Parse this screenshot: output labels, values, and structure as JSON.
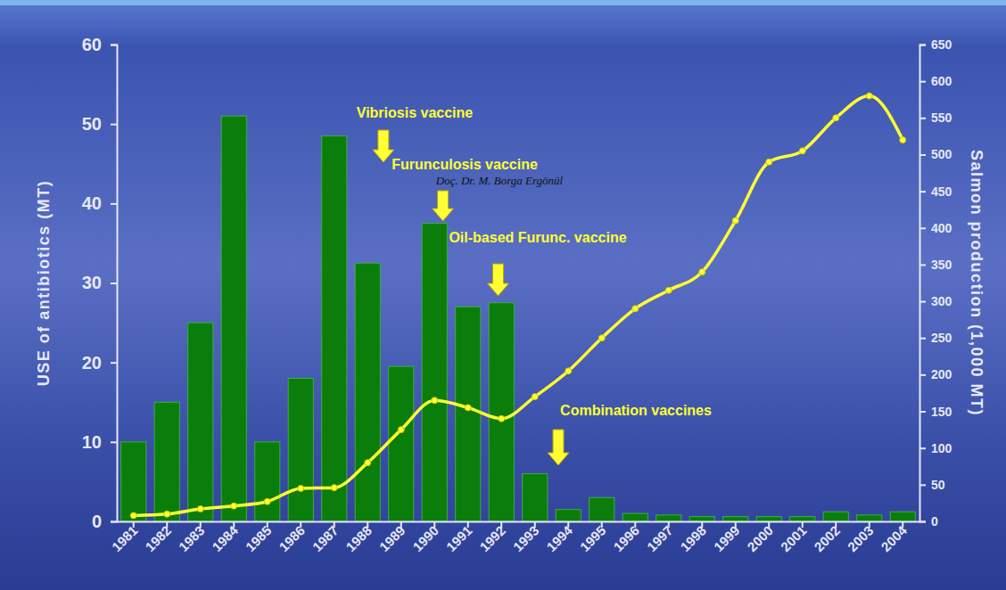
{
  "chart_data": {
    "type": "bar",
    "categories": [
      "1981",
      "1982",
      "1983",
      "1984",
      "1985",
      "1986",
      "1987",
      "1988",
      "1989",
      "1990",
      "1991",
      "1992",
      "1993",
      "1994",
      "1995",
      "1996",
      "1997",
      "1998",
      "1999",
      "2000",
      "2001",
      "2002",
      "2003",
      "2004"
    ],
    "series": [
      {
        "name": "USE of antibiotics (MT)",
        "type": "bar",
        "color": "#0a7d0a",
        "values": [
          10,
          15,
          25,
          51,
          10,
          18,
          48.5,
          32.5,
          19.5,
          37.5,
          27,
          27.5,
          6,
          1.5,
          3,
          1,
          0.8,
          0.6,
          0.6,
          0.6,
          0.6,
          1.2,
          0.8,
          1.2
        ]
      },
      {
        "name": "Salmon production (1,000 MT)",
        "type": "line",
        "axis": "y2",
        "color": "#ffff33",
        "marker": "circle",
        "values": [
          8,
          10,
          17,
          21,
          27,
          45,
          46,
          80,
          125,
          165,
          155,
          140,
          170,
          205,
          250,
          290,
          315,
          340,
          410,
          490,
          505,
          550,
          580,
          520
        ]
      }
    ],
    "ylim": [
      0,
      60
    ],
    "yticks": [
      0,
      10,
      20,
      30,
      40,
      50,
      60
    ],
    "y2lim": [
      0,
      650
    ],
    "y2ticks": [
      0,
      50,
      100,
      150,
      200,
      250,
      300,
      350,
      400,
      450,
      500,
      550,
      600,
      650
    ],
    "grid": false,
    "annotations": [
      "Vibriosis vaccine",
      "Furunculosis vaccine",
      "Oil-based Furunc. vaccine",
      "Combination vaccines"
    ],
    "credit": "Doç. Dr. M. Borga Ergönül"
  }
}
